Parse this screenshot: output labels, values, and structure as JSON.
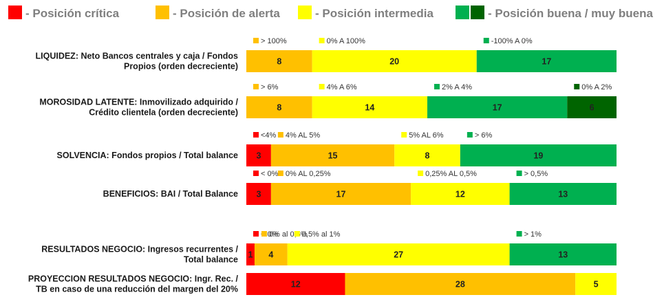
{
  "colors": {
    "critical": "#ff0000",
    "alert": "#ffc000",
    "intermediate": "#ffff00",
    "good": "#00b050",
    "very_good": "#006400"
  },
  "legend": [
    {
      "color": "critical",
      "label": "- Posición crítica"
    },
    {
      "color": "alert",
      "label": "- Posición de alerta"
    },
    {
      "color": "intermediate",
      "label": "- Posición intermedia"
    },
    {
      "colors": [
        "good",
        "very_good"
      ],
      "label": "- Posición buena / muy buena"
    }
  ],
  "chart_data": {
    "type": "bar",
    "orientation": "horizontal-stacked",
    "total": 45,
    "rows": [
      {
        "label_lines": [
          "LIQUIDEZ: Neto Bancos centrales y caja / Fondos",
          "Propios (orden decreciente)"
        ],
        "segments": [
          {
            "value": 8,
            "color": "alert",
            "label": "8",
            "annotation": "> 100%"
          },
          {
            "value": 20,
            "color": "intermediate",
            "label": "20",
            "annotation": "0% A 100%"
          },
          {
            "value": 17,
            "color": "good",
            "label": "17",
            "annotation": "-100% A 0%"
          }
        ]
      },
      {
        "label_lines": [
          "MOROSIDAD LATENTE: Inmovilizado adquirido /",
          "Crédito clientela (orden decreciente)"
        ],
        "segments": [
          {
            "value": 8,
            "color": "alert",
            "label": "8",
            "annotation": "> 6%"
          },
          {
            "value": 14,
            "color": "intermediate",
            "label": "14",
            "annotation": "4% A 6%"
          },
          {
            "value": 17,
            "color": "good",
            "label": "17",
            "annotation": "2% A 4%"
          },
          {
            "value": 6,
            "color": "very_good",
            "label": "6",
            "annotation": "0% A 2%"
          }
        ]
      },
      {
        "label_lines": [
          "SOLVENCIA: Fondos propios / Total balance"
        ],
        "segments": [
          {
            "value": 3,
            "color": "critical",
            "label": "3",
            "annotation": "<4%"
          },
          {
            "value": 15,
            "color": "alert",
            "label": "15",
            "annotation": "4% AL 5%"
          },
          {
            "value": 8,
            "color": "intermediate",
            "label": "8",
            "annotation": "5% AL 6%"
          },
          {
            "value": 19,
            "color": "good",
            "label": "19",
            "annotation": "> 6%"
          }
        ]
      },
      {
        "label_lines": [
          "BENEFICIOS: BAI / Total Balance"
        ],
        "segments": [
          {
            "value": 3,
            "color": "critical",
            "label": "3",
            "annotation": "< 0%"
          },
          {
            "value": 17,
            "color": "alert",
            "label": "17",
            "annotation": "0% AL 0,25%"
          },
          {
            "value": 12,
            "color": "intermediate",
            "label": "12",
            "annotation": "0,25% AL 0,5%"
          },
          {
            "value": 13,
            "color": "good",
            "label": "13",
            "annotation": "> 0,5%"
          }
        ]
      },
      {
        "label_lines": [
          "RESULTADOS NEGOCIO: Ingresos recurrentes /",
          "Total balance"
        ],
        "segments": [
          {
            "value": 1,
            "color": "critical",
            "label": "1",
            "annotation": "< 0%"
          },
          {
            "value": 4,
            "color": "alert",
            "label": "4",
            "annotation": "0% al 0,5%"
          },
          {
            "value": 27,
            "color": "intermediate",
            "label": "27",
            "annotation": "0,5% al 1%"
          },
          {
            "value": 13,
            "color": "good",
            "label": "13",
            "annotation": "> 1%"
          }
        ]
      },
      {
        "label_lines": [
          "PROYECCION RESULTADOS NEGOCIO: Ingr. Rec. /",
          "TB en caso de una reducción del margen del 20%"
        ],
        "segments": [
          {
            "value": 12,
            "color": "critical",
            "label": "12"
          },
          {
            "value": 28,
            "color": "alert",
            "label": "28"
          },
          {
            "value": 5,
            "color": "intermediate",
            "label": "5"
          }
        ]
      }
    ]
  }
}
